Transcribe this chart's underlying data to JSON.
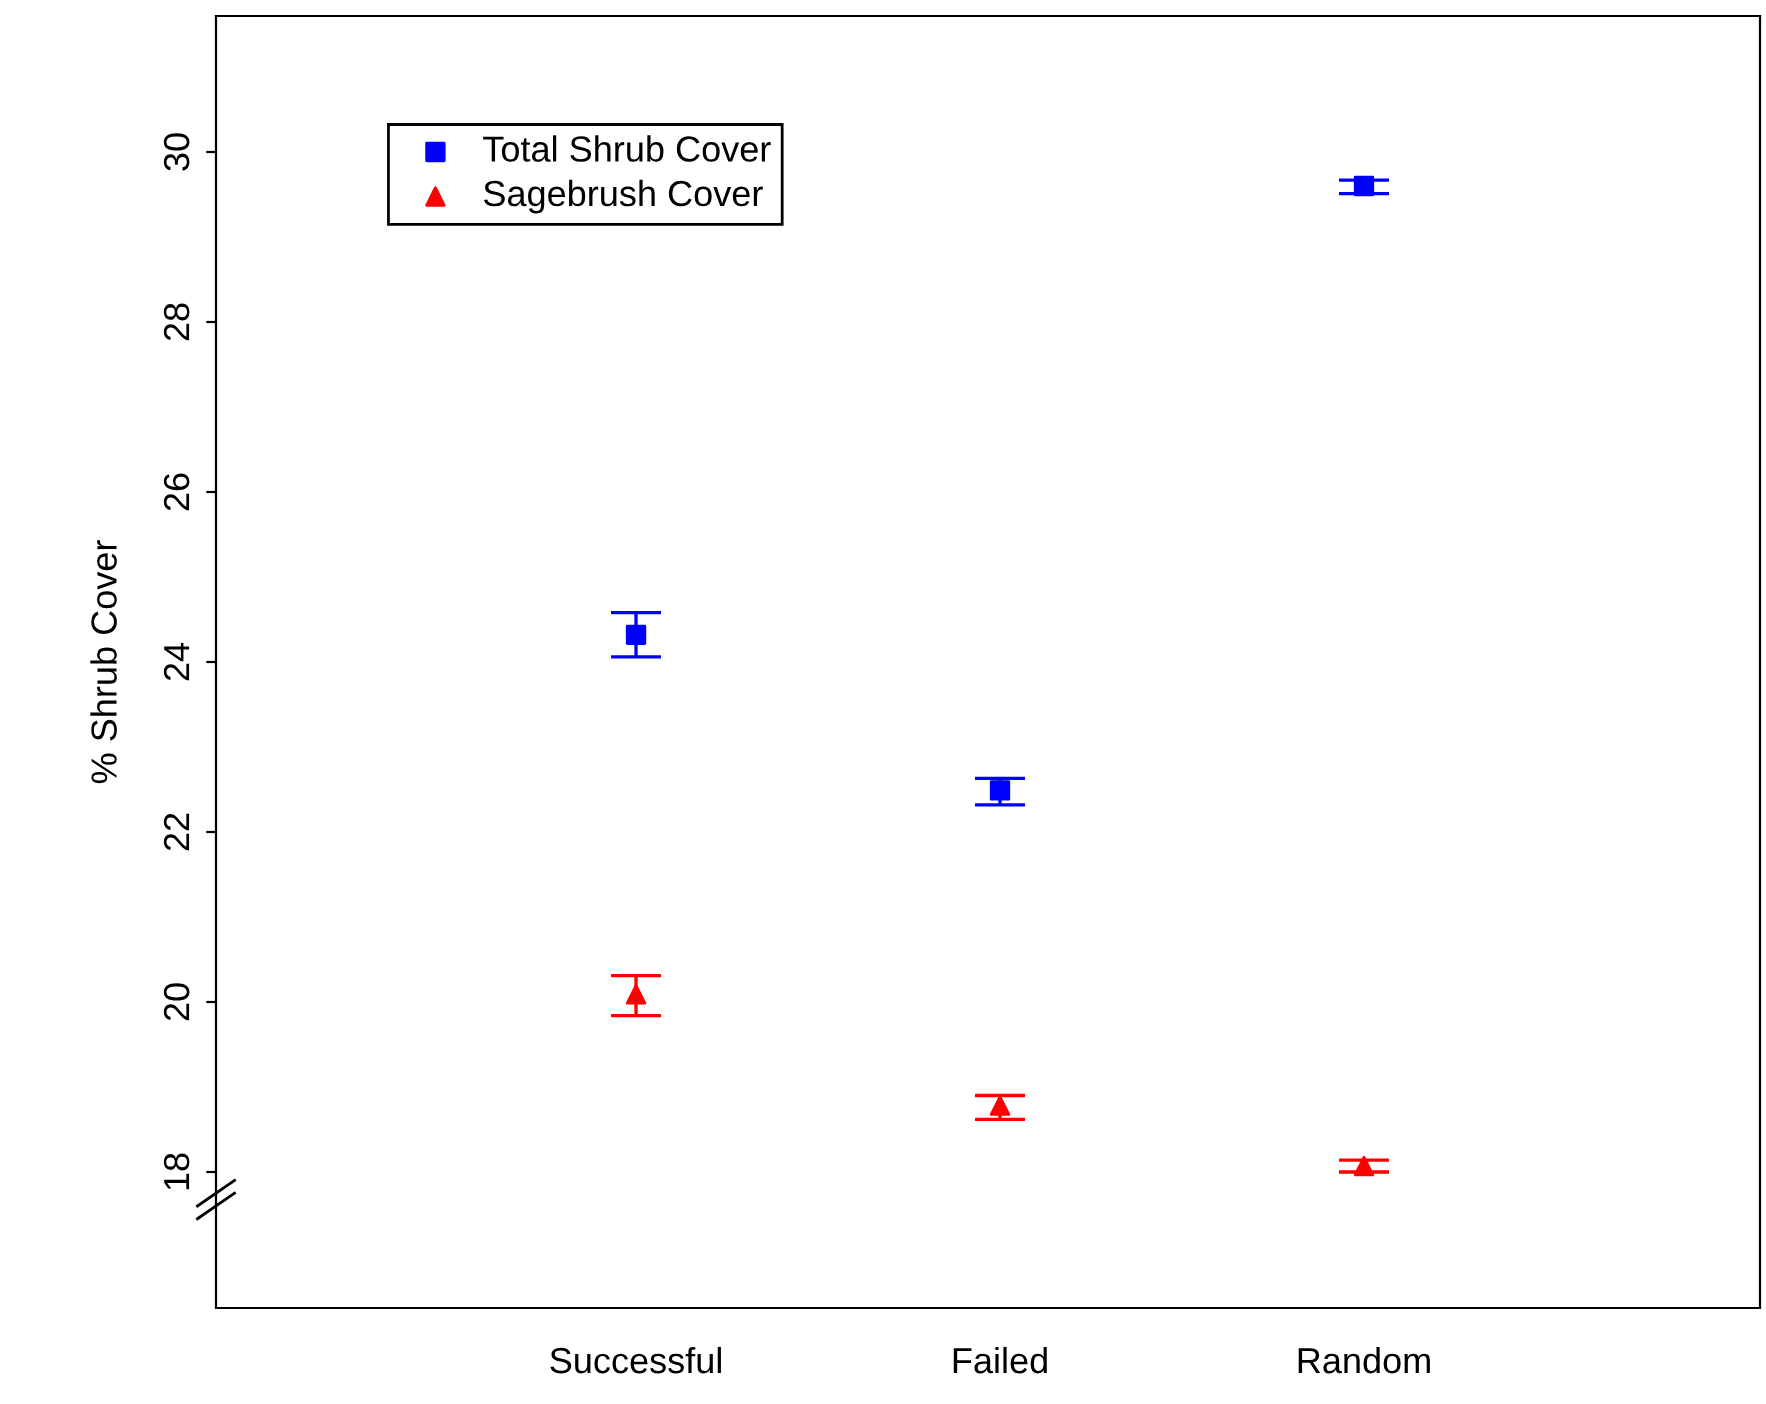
{
  "chart_data": {
    "type": "scatter",
    "ylabel": "% Shrub Cover",
    "categories": [
      "Successful",
      "Failed",
      "Random"
    ],
    "series": [
      {
        "name": "Total Shrub Cover",
        "color": "#0000ff",
        "marker": "square",
        "values": [
          24.32,
          22.49,
          29.6
        ],
        "errors": [
          [
            24.06,
            24.58
          ],
          [
            22.32,
            22.63
          ],
          [
            29.51,
            29.67
          ]
        ]
      },
      {
        "name": "Sagebrush Cover",
        "color": "#ff0000",
        "marker": "triangle",
        "values": [
          20.09,
          18.78,
          18.07
        ],
        "errors": [
          [
            19.84,
            20.31
          ],
          [
            18.62,
            18.9
          ],
          [
            18.0,
            18.14
          ]
        ]
      }
    ],
    "ylim": [
      16.4,
      31.6
    ],
    "yticks": [
      18,
      20,
      22,
      24,
      26,
      28,
      30
    ],
    "grid": false,
    "legend": "top left"
  }
}
